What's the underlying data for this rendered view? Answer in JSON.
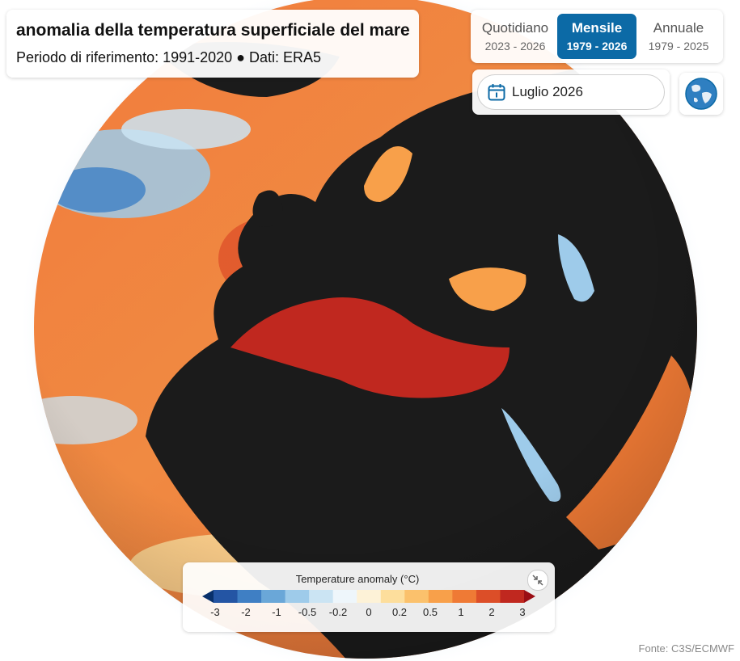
{
  "title": "anomalia della temperatura superficiale del mare",
  "subtitle": "Periodo di riferimento: 1991-2020 ● Dati: ERA5",
  "modes": [
    {
      "label": "Quotidiano",
      "range": "2023 - 2026",
      "active": false
    },
    {
      "label": "Mensile",
      "range": "1979 - 2026",
      "active": true
    },
    {
      "label": "Annuale",
      "range": "1979 - 2025",
      "active": false
    }
  ],
  "date": "Luglio 2026",
  "legend": {
    "title": "Temperature anomaly (°C)",
    "ticks": [
      "-3",
      "-2",
      "-1",
      "-0.5",
      "-0.2",
      "0",
      "0.2",
      "0.5",
      "1",
      "2",
      "3"
    ],
    "colors": [
      "#08306b",
      "#2455a4",
      "#3f7fc4",
      "#6aa7d8",
      "#9ecbea",
      "#cbe4f3",
      "#eef6fb",
      "#fdf2d7",
      "#fdde9c",
      "#fbc16c",
      "#f8a04a",
      "#ef7a35",
      "#dc4e28",
      "#c0281f",
      "#9a0d14"
    ]
  },
  "source": "Fonte: C3S/ECMWF",
  "icons": {
    "calendar": "calendar-icon",
    "globe": "globe-icon",
    "shrink": "collapse-icon"
  },
  "colors": {
    "land": "#1b1b1b",
    "accent": "#0c6aa6"
  }
}
